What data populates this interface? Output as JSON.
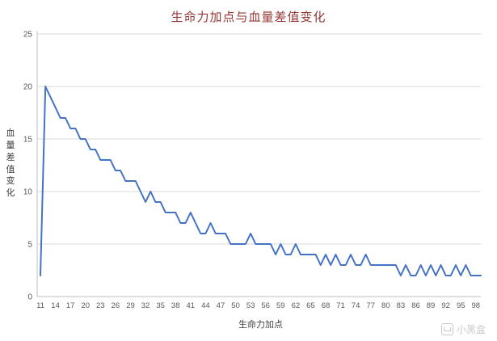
{
  "chart_data": {
    "type": "line",
    "title": "生命力加点与血量差值变化",
    "xlabel": "生命力加点",
    "ylabel": "血量差值变化",
    "xlim": [
      11,
      99
    ],
    "ylim": [
      0,
      25
    ],
    "yticks": [
      0,
      5,
      10,
      15,
      20,
      25
    ],
    "xticks": [
      11,
      14,
      17,
      20,
      23,
      26,
      29,
      32,
      35,
      38,
      41,
      44,
      47,
      50,
      53,
      56,
      59,
      62,
      65,
      68,
      71,
      74,
      77,
      80,
      83,
      86,
      89,
      92,
      95,
      98
    ],
    "x": [
      11,
      12,
      13,
      14,
      15,
      16,
      17,
      18,
      19,
      20,
      21,
      22,
      23,
      24,
      25,
      26,
      27,
      28,
      29,
      30,
      31,
      32,
      33,
      34,
      35,
      36,
      37,
      38,
      39,
      40,
      41,
      42,
      43,
      44,
      45,
      46,
      47,
      48,
      49,
      50,
      51,
      52,
      53,
      54,
      55,
      56,
      57,
      58,
      59,
      60,
      61,
      62,
      63,
      64,
      65,
      66,
      67,
      68,
      69,
      70,
      71,
      72,
      73,
      74,
      75,
      76,
      77,
      78,
      79,
      80,
      81,
      82,
      83,
      84,
      85,
      86,
      87,
      88,
      89,
      90,
      91,
      92,
      93,
      94,
      95,
      96,
      97,
      98,
      99
    ],
    "values": [
      2,
      20,
      19,
      18,
      17,
      17,
      16,
      16,
      15,
      15,
      14,
      14,
      13,
      13,
      13,
      12,
      12,
      11,
      11,
      11,
      10,
      9,
      10,
      9,
      9,
      8,
      8,
      8,
      7,
      7,
      8,
      7,
      6,
      6,
      7,
      6,
      6,
      6,
      5,
      5,
      5,
      5,
      6,
      5,
      5,
      5,
      5,
      4,
      5,
      4,
      4,
      5,
      4,
      4,
      4,
      4,
      3,
      4,
      3,
      4,
      3,
      3,
      4,
      3,
      3,
      4,
      3,
      3,
      3,
      3,
      3,
      3,
      2,
      3,
      2,
      2,
      3,
      2,
      3,
      2,
      3,
      2,
      2,
      3,
      2,
      3,
      2,
      2,
      2
    ],
    "grid_on": true,
    "legend": "none",
    "line_color": "#4472C4",
    "grid_color": "#D9D9D9",
    "axis_color": "#BFBFBF",
    "tick_color": "#595959",
    "title_color": "#953735"
  },
  "watermark": {
    "text": "小黑盒"
  }
}
